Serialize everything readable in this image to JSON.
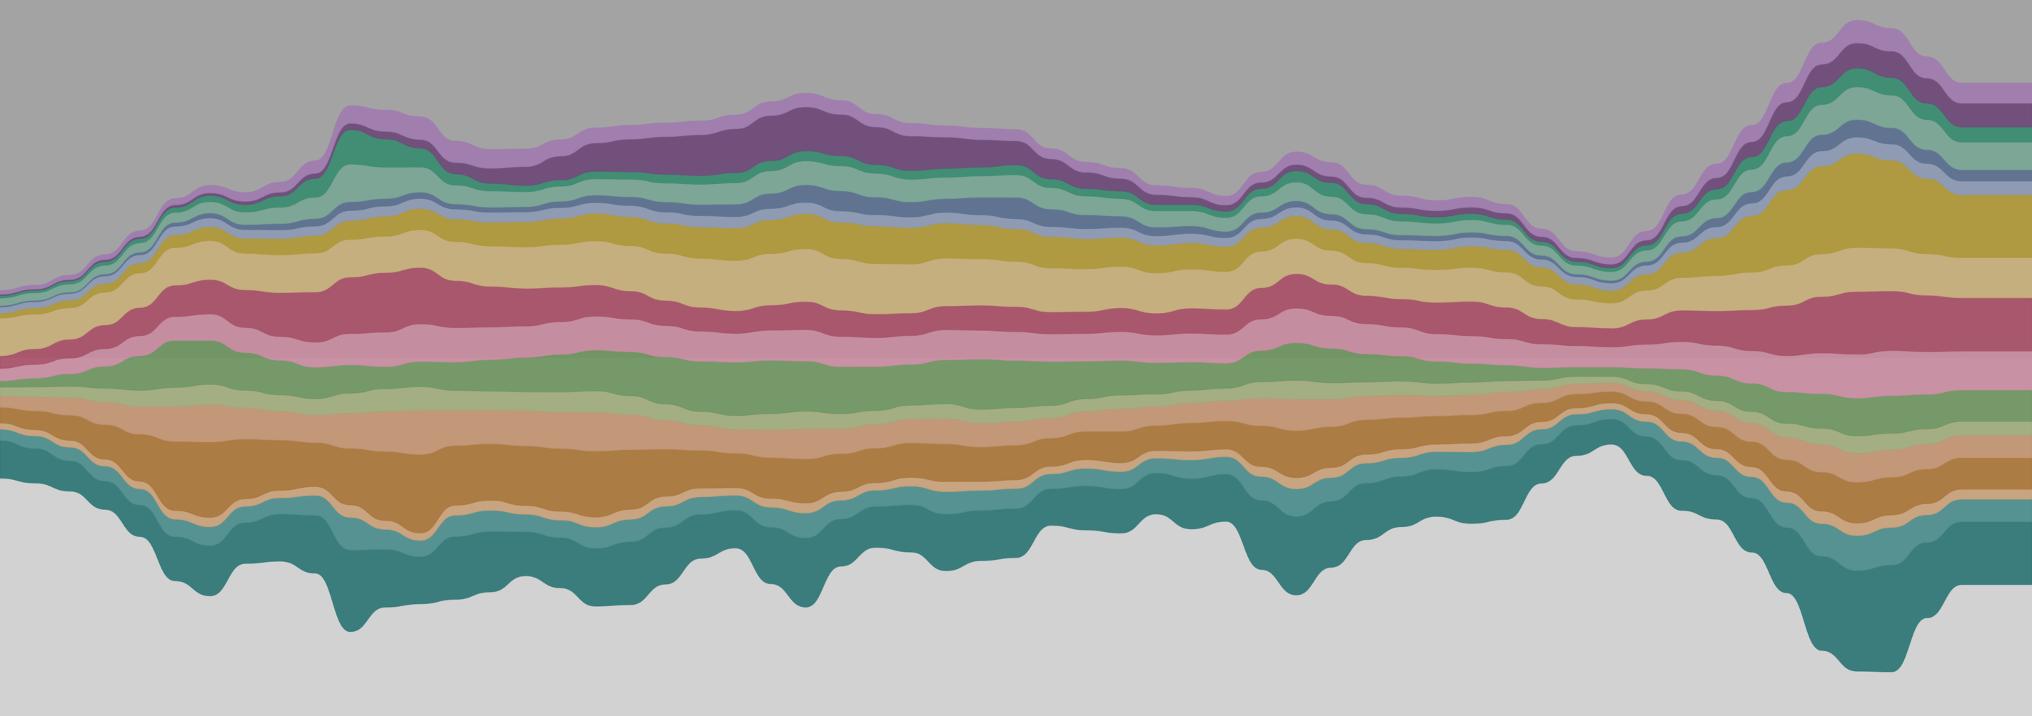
{
  "background": {
    "top": "#a3a3a3",
    "bottom": "#d2d2d2"
  },
  "chart_data": {
    "type": "area",
    "layout": "streamgraph",
    "baseline": "wiggle",
    "axes_visible": false,
    "grid": false,
    "legend": "none",
    "title": "",
    "x": [
      0,
      1,
      2,
      3,
      4,
      5,
      6,
      7,
      8,
      9,
      10,
      11,
      12,
      13,
      14,
      15,
      16,
      17,
      18,
      19,
      20,
      21,
      22,
      23,
      24,
      25,
      26,
      27,
      28,
      29,
      30,
      31,
      32,
      33,
      34,
      35,
      36,
      37,
      38,
      39,
      40,
      41,
      42,
      43,
      44,
      45,
      46,
      47,
      48,
      49,
      50,
      51,
      52,
      53,
      54,
      55,
      56,
      57,
      58
    ],
    "series": [
      {
        "color": "#2e7474",
        "values": [
          60,
          55,
          48,
          45,
          50,
          70,
          80,
          65,
          75,
          92,
          130,
          92,
          75,
          100,
          96,
          70,
          80,
          92,
          100,
          90,
          70,
          60,
          90,
          110,
          75,
          65,
          75,
          90,
          80,
          78,
          58,
          70,
          70,
          65,
          80,
          75,
          110,
          125,
          105,
          90,
          80,
          75,
          82,
          85,
          62,
          48,
          40,
          62,
          80,
          70,
          86,
          104,
          150,
          160,
          170,
          120,
          100,
          100,
          100
        ]
      },
      {
        "color": "#4b8c8c",
        "values": [
          18,
          20,
          22,
          24,
          26,
          28,
          30,
          26,
          26,
          32,
          52,
          32,
          26,
          34,
          34,
          28,
          28,
          34,
          36,
          34,
          28,
          24,
          32,
          40,
          30,
          26,
          30,
          36,
          32,
          32,
          24,
          28,
          28,
          24,
          30,
          28,
          38,
          44,
          38,
          32,
          30,
          28,
          32,
          34,
          24,
          18,
          16,
          24,
          30,
          28,
          34,
          40,
          52,
          56,
          60,
          44,
          36,
          36,
          36
        ]
      },
      {
        "color": "#c8a078",
        "values": [
          10,
          10,
          11,
          11,
          12,
          14,
          15,
          12,
          12,
          14,
          20,
          14,
          12,
          16,
          16,
          14,
          14,
          16,
          16,
          16,
          14,
          12,
          14,
          16,
          14,
          12,
          14,
          16,
          14,
          14,
          12,
          14,
          14,
          12,
          14,
          12,
          16,
          18,
          16,
          14,
          14,
          12,
          14,
          14,
          12,
          10,
          10,
          12,
          14,
          14,
          16,
          18,
          20,
          20,
          20,
          18,
          16,
          16,
          16
        ]
      },
      {
        "color": "#a87438",
        "values": [
          25,
          30,
          40,
          55,
          75,
          110,
          120,
          95,
          80,
          70,
          90,
          110,
          125,
          95,
          90,
          95,
          100,
          105,
          95,
          75,
          60,
          55,
          65,
          70,
          60,
          55,
          55,
          60,
          55,
          55,
          45,
          45,
          50,
          40,
          45,
          45,
          65,
          75,
          65,
          55,
          50,
          45,
          45,
          40,
          30,
          22,
          18,
          20,
          30,
          35,
          40,
          50,
          62,
          65,
          60,
          55,
          50,
          50,
          50
        ]
      },
      {
        "color": "#c09270",
        "values": [
          18,
          22,
          28,
          36,
          44,
          56,
          60,
          50,
          46,
          44,
          56,
          64,
          70,
          56,
          54,
          56,
          58,
          62,
          56,
          46,
          40,
          38,
          44,
          48,
          40,
          38,
          38,
          40,
          38,
          38,
          32,
          32,
          36,
          30,
          32,
          32,
          44,
          50,
          44,
          38,
          36,
          32,
          32,
          30,
          22,
          16,
          14,
          16,
          22,
          26,
          30,
          36,
          44,
          46,
          44,
          40,
          36,
          36,
          36
        ]
      },
      {
        "color": "#a0aa7c",
        "values": [
          14,
          16,
          18,
          22,
          26,
          30,
          32,
          28,
          26,
          26,
          32,
          36,
          38,
          32,
          30,
          30,
          32,
          34,
          30,
          26,
          22,
          22,
          26,
          28,
          24,
          22,
          22,
          24,
          22,
          22,
          20,
          20,
          22,
          20,
          20,
          20,
          26,
          30,
          26,
          22,
          22,
          20,
          20,
          18,
          14,
          12,
          10,
          12,
          14,
          16,
          18,
          22,
          26,
          28,
          26,
          24,
          22,
          22,
          22
        ]
      },
      {
        "color": "#6e9460",
        "values": [
          10,
          14,
          20,
          35,
          55,
          75,
          70,
          60,
          55,
          50,
          45,
          35,
          40,
          45,
          50,
          55,
          60,
          65,
          70,
          75,
          80,
          85,
          85,
          80,
          75,
          70,
          65,
          70,
          80,
          75,
          70,
          60,
          55,
          50,
          45,
          40,
          50,
          60,
          55,
          45,
          40,
          35,
          30,
          25,
          20,
          15,
          15,
          25,
          35,
          40,
          45,
          50,
          55,
          60,
          60,
          55,
          50,
          50,
          50
        ]
      },
      {
        "color": "#c88ca0",
        "values": [
          20,
          22,
          25,
          28,
          32,
          38,
          42,
          40,
          38,
          40,
          50,
          55,
          60,
          55,
          52,
          50,
          52,
          54,
          52,
          50,
          48,
          46,
          48,
          50,
          48,
          46,
          46,
          48,
          46,
          46,
          44,
          44,
          46,
          44,
          46,
          46,
          50,
          55,
          52,
          48,
          46,
          44,
          44,
          42,
          38,
          34,
          32,
          38,
          44,
          48,
          52,
          58,
          65,
          70,
          72,
          68,
          62,
          62,
          62
        ]
      },
      {
        "color": "#a85068",
        "values": [
          20,
          25,
          30,
          38,
          45,
          50,
          55,
          60,
          70,
          80,
          90,
          95,
          90,
          75,
          65,
          60,
          55,
          50,
          45,
          40,
          38,
          36,
          40,
          45,
          42,
          38,
          36,
          38,
          40,
          40,
          35,
          35,
          38,
          35,
          40,
          40,
          50,
          55,
          50,
          45,
          45,
          50,
          55,
          50,
          40,
          30,
          30,
          40,
          50,
          55,
          65,
          80,
          90,
          100,
          95,
          90,
          85,
          85,
          85
        ]
      },
      {
        "color": "#c8b07c",
        "values": [
          60,
          55,
          50,
          52,
          55,
          60,
          62,
          58,
          60,
          62,
          60,
          58,
          60,
          62,
          64,
          66,
          68,
          70,
          72,
          75,
          78,
          80,
          82,
          84,
          82,
          80,
          78,
          76,
          74,
          72,
          70,
          68,
          66,
          64,
          62,
          60,
          58,
          56,
          54,
          52,
          50,
          52,
          54,
          56,
          52,
          44,
          40,
          46,
          52,
          56,
          60,
          64,
          68,
          70,
          68,
          66,
          64,
          64,
          64
        ]
      },
      {
        "color": "#b09838",
        "values": [
          8,
          10,
          12,
          14,
          16,
          20,
          22,
          24,
          26,
          28,
          30,
          32,
          34,
          36,
          38,
          40,
          42,
          44,
          46,
          48,
          50,
          52,
          54,
          56,
          58,
          60,
          58,
          56,
          54,
          52,
          50,
          48,
          46,
          44,
          42,
          40,
          38,
          36,
          34,
          32,
          30,
          32,
          34,
          36,
          30,
          24,
          20,
          26,
          40,
          60,
          90,
          120,
          140,
          150,
          140,
          120,
          100,
          100,
          100
        ]
      },
      {
        "color": "#8c9ab4",
        "values": [
          10,
          10,
          11,
          12,
          13,
          14,
          14,
          14,
          14,
          15,
          16,
          16,
          16,
          16,
          16,
          16,
          17,
          17,
          18,
          18,
          18,
          18,
          18,
          18,
          18,
          18,
          17,
          17,
          16,
          16,
          16,
          16,
          16,
          15,
          15,
          14,
          14,
          14,
          14,
          14,
          14,
          14,
          14,
          14,
          13,
          12,
          12,
          14,
          16,
          18,
          20,
          22,
          24,
          26,
          26,
          24,
          22,
          22,
          22
        ]
      },
      {
        "color": "#5a7090",
        "values": [
          2,
          2,
          2,
          3,
          4,
          6,
          8,
          8,
          10,
          12,
          14,
          12,
          10,
          8,
          8,
          8,
          10,
          12,
          14,
          16,
          18,
          20,
          24,
          28,
          32,
          28,
          24,
          22,
          28,
          34,
          28,
          22,
          18,
          14,
          12,
          10,
          10,
          10,
          10,
          8,
          8,
          8,
          8,
          8,
          6,
          4,
          4,
          6,
          10,
          14,
          18,
          22,
          26,
          28,
          26,
          22,
          18,
          18,
          18
        ]
      },
      {
        "color": "#7aa696",
        "values": [
          12,
          12,
          13,
          14,
          15,
          16,
          18,
          20,
          26,
          34,
          60,
          50,
          40,
          30,
          26,
          24,
          24,
          26,
          28,
          30,
          32,
          34,
          36,
          38,
          40,
          38,
          36,
          34,
          34,
          36,
          34,
          30,
          28,
          26,
          24,
          22,
          26,
          30,
          28,
          24,
          22,
          20,
          20,
          18,
          16,
          14,
          14,
          18,
          24,
          30,
          36,
          42,
          48,
          52,
          52,
          48,
          44,
          44,
          44
        ]
      },
      {
        "color": "#3a8c70",
        "values": [
          4,
          4,
          5,
          6,
          7,
          8,
          10,
          12,
          18,
          30,
          55,
          45,
          30,
          18,
          12,
          10,
          10,
          12,
          12,
          14,
          14,
          16,
          16,
          16,
          16,
          14,
          14,
          14,
          14,
          16,
          14,
          12,
          12,
          10,
          10,
          10,
          12,
          18,
          22,
          16,
          12,
          10,
          10,
          8,
          6,
          6,
          6,
          8,
          12,
          16,
          20,
          24,
          28,
          30,
          28,
          26,
          24,
          24,
          24
        ]
      },
      {
        "color": "#6c4a78",
        "values": [
          2,
          2,
          2,
          3,
          3,
          4,
          4,
          5,
          6,
          8,
          10,
          12,
          14,
          18,
          24,
          30,
          38,
          45,
          52,
          60,
          65,
          70,
          72,
          70,
          66,
          60,
          55,
          50,
          44,
          38,
          32,
          26,
          20,
          16,
          12,
          10,
          10,
          10,
          10,
          10,
          10,
          10,
          10,
          10,
          8,
          6,
          6,
          8,
          12,
          18,
          24,
          30,
          36,
          40,
          42,
          40,
          38,
          38,
          38
        ]
      },
      {
        "color": "#a07cb0",
        "values": [
          6,
          6,
          7,
          8,
          9,
          10,
          12,
          14,
          16,
          20,
          28,
          34,
          36,
          34,
          30,
          28,
          26,
          24,
          22,
          22,
          22,
          22,
          22,
          22,
          22,
          20,
          20,
          18,
          18,
          18,
          16,
          16,
          16,
          14,
          14,
          14,
          16,
          20,
          22,
          20,
          18,
          16,
          16,
          14,
          12,
          10,
          10,
          14,
          18,
          22,
          26,
          30,
          34,
          36,
          36,
          34,
          32,
          32,
          32
        ]
      }
    ]
  }
}
